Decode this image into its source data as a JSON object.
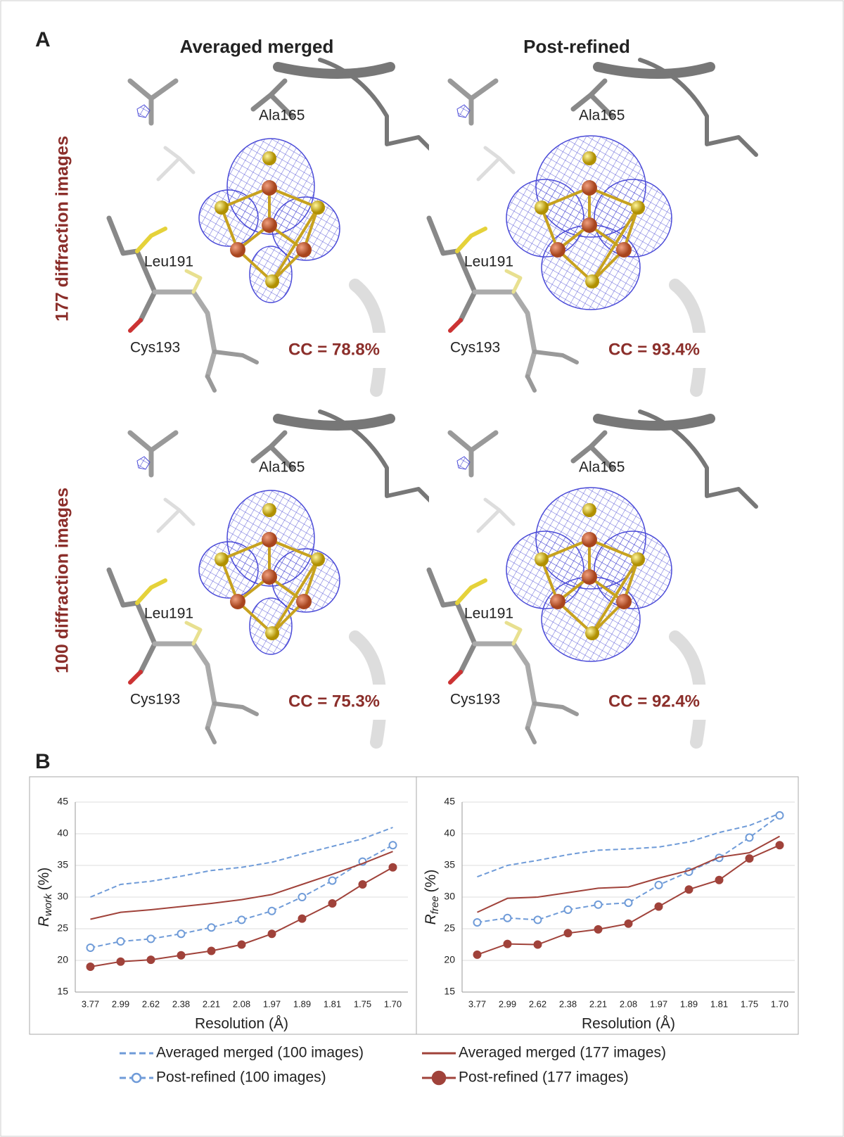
{
  "panel_a": {
    "label": "A",
    "columns": [
      "Averaged merged",
      "Post-refined"
    ],
    "rows": [
      "177 diffraction images",
      "100 diffraction images"
    ],
    "cells": [
      {
        "residues": [
          "Ala165",
          "Leu191",
          "Cys193"
        ],
        "cc": "CC = 78.8%"
      },
      {
        "residues": [
          "Ala165",
          "Leu191",
          "Cys193"
        ],
        "cc": "CC = 93.4%"
      },
      {
        "residues": [
          "Ala165",
          "Leu191",
          "Cys193"
        ],
        "cc": "CC = 75.3%"
      },
      {
        "residues": [
          "Ala165",
          "Leu191",
          "Cys193"
        ],
        "cc": "CC = 92.4%"
      }
    ]
  },
  "panel_b": {
    "label": "B"
  },
  "chart_data": [
    {
      "type": "line",
      "ylabel": {
        "symbol": "R",
        "subscript": "work",
        "unit": "(%)"
      },
      "xlabel": "Resolution (Å)",
      "categories": [
        "3.77",
        "2.99",
        "2.62",
        "2.38",
        "2.21",
        "2.08",
        "1.97",
        "1.89",
        "1.81",
        "1.75",
        "1.70"
      ],
      "ylim": [
        15,
        45
      ],
      "yticks": [
        15,
        20,
        25,
        30,
        35,
        40,
        45
      ],
      "grid": true,
      "series": [
        {
          "name": "Averaged merged (100 images)",
          "color": "#6f9bd8",
          "dash": true,
          "marker": "none",
          "values": [
            30,
            32,
            32.5,
            33.3,
            34.2,
            34.7,
            35.5,
            36.8,
            38,
            39.2,
            41
          ]
        },
        {
          "name": "Post-refined (100 images)",
          "color": "#6f9bd8",
          "dash": true,
          "marker": "open",
          "values": [
            22,
            23,
            23.4,
            24.2,
            25.2,
            26.4,
            27.8,
            30,
            32.6,
            35.6,
            38.2
          ]
        },
        {
          "name": "Averaged merged (177 images)",
          "color": "#a0423a",
          "dash": false,
          "marker": "none",
          "values": [
            26.5,
            27.6,
            28,
            28.5,
            29,
            29.6,
            30.4,
            32,
            33.6,
            35.3,
            37.2
          ]
        },
        {
          "name": "Post-refined (177 images)",
          "color": "#a0423a",
          "dash": false,
          "marker": "filled",
          "values": [
            19,
            19.8,
            20.1,
            20.8,
            21.5,
            22.5,
            24.2,
            26.6,
            29,
            32,
            34.7
          ]
        }
      ]
    },
    {
      "type": "line",
      "ylabel": {
        "symbol": "R",
        "subscript": "free",
        "unit": "(%)"
      },
      "xlabel": "Resolution (Å)",
      "categories": [
        "3.77",
        "2.99",
        "2.62",
        "2.38",
        "2.21",
        "2.08",
        "1.97",
        "1.89",
        "1.81",
        "1.75",
        "1.70"
      ],
      "ylim": [
        15,
        45
      ],
      "yticks": [
        15,
        20,
        25,
        30,
        35,
        40,
        45
      ],
      "grid": true,
      "series": [
        {
          "color": "#6f9bd8",
          "dash": true,
          "marker": "none",
          "values": [
            33.2,
            35,
            35.8,
            36.7,
            37.4,
            37.6,
            37.9,
            38.7,
            40.2,
            41.3,
            43.2
          ]
        },
        {
          "color": "#6f9bd8",
          "dash": true,
          "marker": "open",
          "values": [
            26,
            26.7,
            26.4,
            28,
            28.8,
            29.1,
            31.9,
            34,
            36.2,
            39.4,
            42.9
          ]
        },
        {
          "color": "#a0423a",
          "dash": false,
          "marker": "none",
          "values": [
            27.6,
            29.8,
            30,
            30.7,
            31.4,
            31.6,
            33,
            34.2,
            36.3,
            37,
            39.6
          ]
        },
        {
          "color": "#a0423a",
          "dash": false,
          "marker": "filled",
          "values": [
            20.9,
            22.6,
            22.5,
            24.3,
            24.9,
            25.8,
            28.5,
            31.2,
            32.7,
            36.1,
            38.2
          ]
        }
      ]
    }
  ]
}
